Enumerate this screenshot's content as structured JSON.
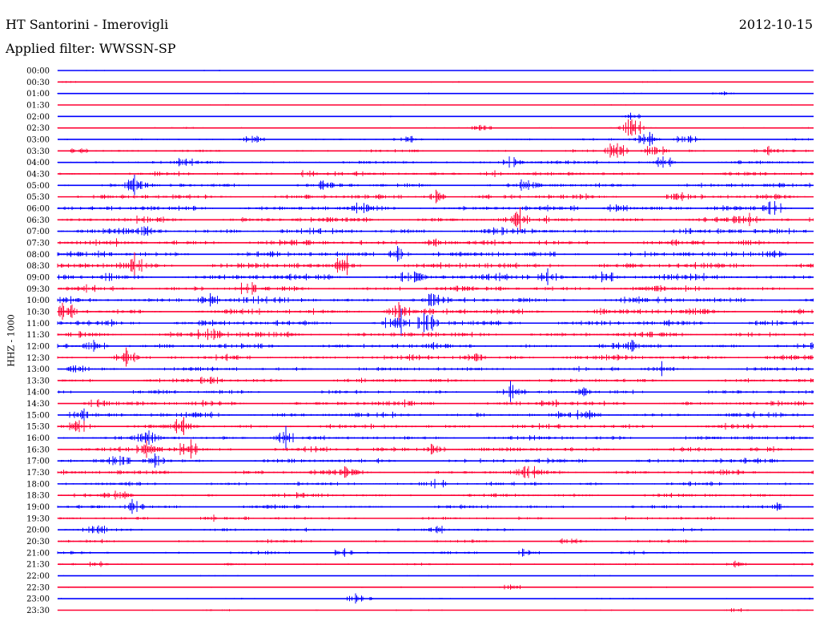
{
  "header": {
    "station": "HT Santorini - Imerovigli",
    "date": "2012-10-15",
    "filter": "Applied filter: WWSSN-SP",
    "channel": "HHZ - 1000"
  },
  "colors": {
    "blue": "#0000ff",
    "red": "#ff0033"
  },
  "chart_data": {
    "type": "line",
    "title": "HT Santorini - Imerovigli",
    "subtitle": "Applied filter: WWSSN-SP",
    "date": "2012-10-15",
    "ylabel": "HHZ - 1000",
    "trace_interval_minutes": 30,
    "series_colors": [
      "#0000ff",
      "#ff0033"
    ],
    "rows": [
      {
        "label": "00:00",
        "activity": 0.02
      },
      {
        "label": "00:30",
        "activity": 0.08
      },
      {
        "label": "01:00",
        "activity": 0.05,
        "events": [
          [
            0.88,
            0.3
          ]
        ]
      },
      {
        "label": "01:30",
        "activity": 0.03
      },
      {
        "label": "02:00",
        "activity": 0.05,
        "events": [
          [
            0.76,
            0.4
          ]
        ]
      },
      {
        "label": "02:30",
        "activity": 0.1,
        "events": [
          [
            0.56,
            0.4
          ],
          [
            0.76,
            0.9
          ]
        ]
      },
      {
        "label": "03:00",
        "activity": 0.18,
        "events": [
          [
            0.26,
            0.5
          ],
          [
            0.46,
            0.4
          ],
          [
            0.78,
            1.0
          ],
          [
            0.83,
            0.6
          ]
        ]
      },
      {
        "label": "03:30",
        "activity": 0.3,
        "events": [
          [
            0.03,
            0.4
          ],
          [
            0.74,
            1.0
          ],
          [
            0.79,
            0.9
          ],
          [
            0.94,
            0.4
          ]
        ]
      },
      {
        "label": "04:00",
        "activity": 0.4,
        "events": [
          [
            0.17,
            0.6
          ],
          [
            0.6,
            0.6
          ],
          [
            0.8,
            0.7
          ]
        ]
      },
      {
        "label": "04:30",
        "activity": 0.45,
        "events": [
          [
            0.33,
            0.5
          ],
          [
            0.57,
            0.4
          ]
        ]
      },
      {
        "label": "05:00",
        "activity": 0.55,
        "events": [
          [
            0.1,
            0.6
          ],
          [
            0.35,
            0.4
          ],
          [
            0.62,
            0.5
          ]
        ]
      },
      {
        "label": "05:30",
        "activity": 0.6,
        "events": [
          [
            0.5,
            0.7
          ],
          [
            0.82,
            0.5
          ]
        ]
      },
      {
        "label": "06:00",
        "activity": 0.65,
        "events": [
          [
            0.4,
            0.5
          ],
          [
            0.74,
            0.6
          ],
          [
            0.95,
            0.4
          ]
        ]
      },
      {
        "label": "06:30",
        "activity": 0.7,
        "events": [
          [
            0.61,
            0.9
          ],
          [
            0.91,
            0.8
          ]
        ]
      },
      {
        "label": "07:00",
        "activity": 0.75,
        "events": [
          [
            0.12,
            0.5
          ],
          [
            0.6,
            0.5
          ]
        ]
      },
      {
        "label": "07:30",
        "activity": 0.7,
        "events": [
          [
            0.5,
            0.5
          ]
        ]
      },
      {
        "label": "08:00",
        "activity": 0.7,
        "events": [
          [
            0.45,
            0.6
          ],
          [
            0.95,
            0.6
          ]
        ]
      },
      {
        "label": "08:30",
        "activity": 0.75,
        "events": [
          [
            0.38,
            0.9
          ],
          [
            0.1,
            0.7
          ]
        ]
      },
      {
        "label": "09:00",
        "activity": 0.8,
        "events": [
          [
            0.47,
            1.0
          ],
          [
            0.65,
            0.8
          ],
          [
            0.73,
            0.7
          ]
        ]
      },
      {
        "label": "09:30",
        "activity": 0.7,
        "events": [
          [
            0.25,
            0.6
          ]
        ]
      },
      {
        "label": "10:00",
        "activity": 0.75,
        "events": [
          [
            0.2,
            0.8
          ],
          [
            0.5,
            0.6
          ]
        ]
      },
      {
        "label": "10:30",
        "activity": 0.8,
        "events": [
          [
            0.01,
            1.0
          ],
          [
            0.45,
            0.8
          ]
        ]
      },
      {
        "label": "11:00",
        "activity": 0.8,
        "events": [
          [
            0.45,
            1.0
          ],
          [
            0.49,
            0.9
          ]
        ]
      },
      {
        "label": "11:30",
        "activity": 0.7,
        "events": [
          [
            0.2,
            0.5
          ]
        ]
      },
      {
        "label": "12:00",
        "activity": 0.6,
        "events": [
          [
            0.05,
            0.7
          ],
          [
            0.75,
            0.8
          ]
        ]
      },
      {
        "label": "12:30",
        "activity": 0.6,
        "events": [
          [
            0.09,
            0.9
          ],
          [
            0.55,
            0.5
          ]
        ]
      },
      {
        "label": "13:00",
        "activity": 0.55,
        "events": [
          [
            0.03,
            0.5
          ],
          [
            0.8,
            0.5
          ]
        ]
      },
      {
        "label": "13:30",
        "activity": 0.5,
        "events": [
          [
            0.2,
            0.4
          ]
        ]
      },
      {
        "label": "14:00",
        "activity": 0.5,
        "events": [
          [
            0.6,
            0.8
          ],
          [
            0.7,
            0.6
          ]
        ]
      },
      {
        "label": "14:30",
        "activity": 0.55,
        "events": [
          [
            0.05,
            0.5
          ],
          [
            0.65,
            0.5
          ]
        ]
      },
      {
        "label": "15:00",
        "activity": 0.6,
        "events": [
          [
            0.03,
            0.8
          ],
          [
            0.2,
            0.5
          ],
          [
            0.7,
            0.4
          ]
        ]
      },
      {
        "label": "15:30",
        "activity": 0.6,
        "events": [
          [
            0.03,
            0.8
          ],
          [
            0.17,
            0.9
          ]
        ]
      },
      {
        "label": "16:00",
        "activity": 0.55,
        "events": [
          [
            0.3,
            0.9
          ],
          [
            0.12,
            0.6
          ]
        ]
      },
      {
        "label": "16:30",
        "activity": 0.6,
        "events": [
          [
            0.12,
            0.8
          ],
          [
            0.17,
            1.0
          ],
          [
            0.5,
            0.5
          ]
        ]
      },
      {
        "label": "17:00",
        "activity": 0.55,
        "events": [
          [
            0.08,
            0.6
          ],
          [
            0.13,
            0.6
          ]
        ]
      },
      {
        "label": "17:30",
        "activity": 0.55,
        "events": [
          [
            0.38,
            0.5
          ],
          [
            0.62,
            0.5
          ]
        ]
      },
      {
        "label": "18:00",
        "activity": 0.45,
        "events": [
          [
            0.5,
            0.5
          ]
        ]
      },
      {
        "label": "18:30",
        "activity": 0.45,
        "events": [
          [
            0.08,
            0.6
          ]
        ]
      },
      {
        "label": "19:00",
        "activity": 0.4,
        "events": [
          [
            0.1,
            0.5
          ],
          [
            0.95,
            0.6
          ]
        ]
      },
      {
        "label": "19:30",
        "activity": 0.35,
        "events": [
          [
            0.2,
            0.4
          ]
        ]
      },
      {
        "label": "20:00",
        "activity": 0.3,
        "events": [
          [
            0.05,
            0.4
          ],
          [
            0.5,
            0.5
          ]
        ]
      },
      {
        "label": "20:30",
        "activity": 0.3,
        "events": [
          [
            0.68,
            0.5
          ]
        ]
      },
      {
        "label": "21:00",
        "activity": 0.3,
        "events": [
          [
            0.38,
            0.5
          ],
          [
            0.62,
            0.5
          ]
        ]
      },
      {
        "label": "21:30",
        "activity": 0.2,
        "events": [
          [
            0.05,
            0.4
          ],
          [
            0.9,
            0.4
          ]
        ]
      },
      {
        "label": "22:00",
        "activity": 0.05
      },
      {
        "label": "22:30",
        "activity": 0.1,
        "events": [
          [
            0.6,
            0.4
          ]
        ]
      },
      {
        "label": "23:00",
        "activity": 0.1,
        "events": [
          [
            0.4,
            0.7
          ]
        ]
      },
      {
        "label": "23:30",
        "activity": 0.08,
        "events": [
          [
            0.9,
            0.3
          ]
        ]
      }
    ]
  }
}
